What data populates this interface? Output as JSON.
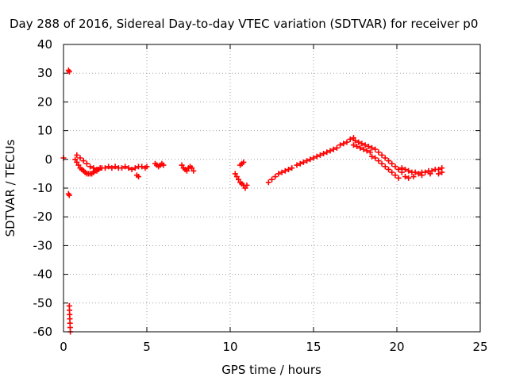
{
  "chart_data": {
    "type": "scatter",
    "title": "Day 288 of 2016, Sidereal Day-to-day VTEC variation (SDTVAR) for receiver p0",
    "xlabel": "GPS time / hours",
    "ylabel": "SDTVAR / TECUs",
    "xlim": [
      0,
      25
    ],
    "ylim": [
      -60,
      40
    ],
    "xticks": [
      0,
      5,
      10,
      15,
      20,
      25
    ],
    "yticks": [
      40,
      30,
      20,
      10,
      0,
      -10,
      -20,
      -30,
      -40,
      -50,
      -60
    ],
    "grid": true,
    "marker": "+",
    "color": "#ff0000",
    "series": [
      {
        "name": "SDTVAR",
        "x": [
          0.0,
          0.3,
          0.35,
          0.3,
          0.35,
          0.35,
          0.36,
          0.37,
          0.38,
          0.39,
          0.4,
          0.41,
          0.7,
          0.8,
          0.9,
          1.0,
          1.1,
          1.2,
          1.3,
          1.4,
          1.5,
          1.6,
          1.7,
          1.8,
          1.9,
          2.0,
          2.1,
          2.2,
          2.3,
          0.8,
          1.0,
          1.2,
          1.4,
          1.6,
          1.8,
          2.0,
          2.5,
          2.7,
          2.9,
          3.1,
          3.3,
          3.5,
          3.7,
          3.9,
          4.1,
          4.3,
          4.5,
          4.7,
          4.9,
          5.0,
          4.4,
          4.5,
          5.5,
          5.6,
          5.7,
          5.8,
          5.9,
          6.0,
          7.1,
          7.2,
          7.3,
          7.4,
          7.5,
          7.6,
          7.7,
          7.8,
          10.3,
          10.4,
          10.5,
          10.6,
          10.7,
          10.8,
          10.9,
          11.0,
          10.6,
          10.7,
          10.8,
          12.3,
          12.5,
          12.7,
          12.9,
          13.1,
          13.3,
          13.5,
          13.7,
          14.0,
          14.2,
          14.4,
          14.6,
          14.8,
          15.0,
          15.2,
          15.4,
          15.6,
          15.8,
          16.0,
          16.2,
          16.4,
          16.6,
          16.8,
          17.0,
          17.2,
          17.4,
          17.5,
          17.7,
          17.9,
          18.1,
          18.3,
          18.5,
          18.7,
          18.9,
          19.1,
          19.3,
          19.5,
          19.7,
          19.9,
          20.1,
          20.3,
          17.4,
          17.6,
          17.8,
          18.0,
          18.2,
          18.4,
          18.5,
          18.7,
          18.9,
          19.1,
          19.3,
          19.5,
          19.7,
          19.9,
          20.1,
          20.3,
          20.5,
          20.7,
          20.9,
          21.1,
          21.3,
          21.5,
          21.7,
          21.9,
          22.1,
          22.3,
          22.5,
          22.7,
          20.5,
          20.7,
          21.0,
          21.5,
          22.0,
          22.5,
          22.7
        ],
        "y": [
          0.5,
          31,
          30.5,
          -12,
          -12.5,
          -51,
          -52.5,
          -54,
          -55.5,
          -57,
          -58.5,
          -60,
          0,
          -1,
          -2,
          -3,
          -3.5,
          -4,
          -4.5,
          -5,
          -5,
          -5,
          -5,
          -4.5,
          -4,
          -4,
          -3.5,
          -3,
          -3,
          1.5,
          0.5,
          -0.5,
          -1.5,
          -2.5,
          -3,
          -3.5,
          -3,
          -2.5,
          -3,
          -2.5,
          -3,
          -3,
          -2.5,
          -3,
          -3.5,
          -3,
          -2.5,
          -2.5,
          -3,
          -2.5,
          -5.5,
          -6,
          -1.5,
          -2,
          -2.5,
          -2,
          -1.5,
          -2,
          -2,
          -3,
          -3.5,
          -4,
          -3,
          -2.5,
          -3,
          -4,
          -5,
          -6,
          -7,
          -8,
          -8.5,
          -9,
          -10,
          -9,
          -2,
          -1.5,
          -1,
          -8,
          -7,
          -6,
          -5,
          -4.5,
          -4,
          -3.5,
          -3,
          -2,
          -1.5,
          -1,
          -0.5,
          0,
          0.5,
          1,
          1.5,
          2,
          2.5,
          3,
          3.5,
          4,
          5,
          5.5,
          6,
          7,
          7.5,
          6.5,
          6,
          5.5,
          5,
          4.5,
          4,
          3.5,
          2.5,
          1.5,
          0.5,
          -0.5,
          -1.5,
          -2.5,
          -3.5,
          -4.5,
          5,
          4.5,
          4,
          3.5,
          3,
          2.5,
          1,
          0.5,
          -0.5,
          -1.5,
          -2.5,
          -3.5,
          -4.5,
          -5.5,
          -6.5,
          -3,
          -3.5,
          -4,
          -4.5,
          -4.5,
          -5,
          -4.5,
          -4.5,
          -4,
          -4,
          -3.5,
          -3.5,
          -3,
          -6,
          -6.5,
          -6,
          -5.5,
          -5,
          -5,
          -4.5
        ]
      }
    ]
  }
}
